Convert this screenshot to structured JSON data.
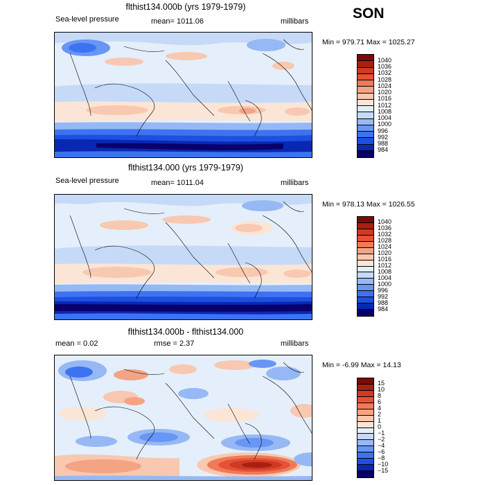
{
  "season": "SON",
  "palettes": {
    "abs": [
      "#08006b",
      "#0828b4",
      "#1e4fe0",
      "#3d73f0",
      "#6896f5",
      "#96b8f5",
      "#c6daf7",
      "#e4effb",
      "#fbe5d6",
      "#f8c8b0",
      "#f4a383",
      "#ef7a58",
      "#e65137",
      "#cf3a22",
      "#a8200f",
      "#7d0a05"
    ],
    "diff": [
      "#08006b",
      "#0828b4",
      "#1e4fe0",
      "#3d73f0",
      "#6896f5",
      "#96b8f5",
      "#c6daf7",
      "#e4effb",
      "#fbe5d6",
      "#f8c8b0",
      "#f4a383",
      "#ef7a58",
      "#e65137",
      "#cf3a22",
      "#a8200f",
      "#7d0a05"
    ]
  },
  "panels": [
    {
      "id": "case",
      "title": "flthist134.000b (yrs 1979-1979)",
      "left_label": "Sea-level pressure",
      "mid_label": "mean= 1011.06",
      "units": "millibars",
      "stats": "Min = 979.71 Max = 1025.27",
      "levels": [
        "1040",
        "1036",
        "1032",
        "1028",
        "1024",
        "1020",
        "1016",
        "1012",
        "1008",
        "1004",
        "1000",
        "996",
        "992",
        "988",
        "984"
      ]
    },
    {
      "id": "control",
      "title": "flthist134.000 (yrs 1979-1979)",
      "left_label": "Sea-level pressure",
      "mid_label": "mean= 1011.04",
      "units": "millibars",
      "stats": "Min = 978.13 Max = 1026.55",
      "levels": [
        "1040",
        "1036",
        "1032",
        "1028",
        "1024",
        "1020",
        "1016",
        "1012",
        "1008",
        "1004",
        "1000",
        "996",
        "992",
        "988",
        "984"
      ]
    },
    {
      "id": "diff",
      "title": "flthist134.000b - flthist134.000",
      "left_label": "mean =    0.02",
      "mid_label": "rmse =    2.37",
      "units": "millibars",
      "stats": "Min =  -6.99 Max =  14.13",
      "levels": [
        "15",
        "10",
        "8",
        "6",
        "4",
        "2",
        "1",
        "0",
        "−1",
        "−2",
        "−4",
        "−6",
        "−8",
        "−10",
        "−15"
      ]
    }
  ]
}
